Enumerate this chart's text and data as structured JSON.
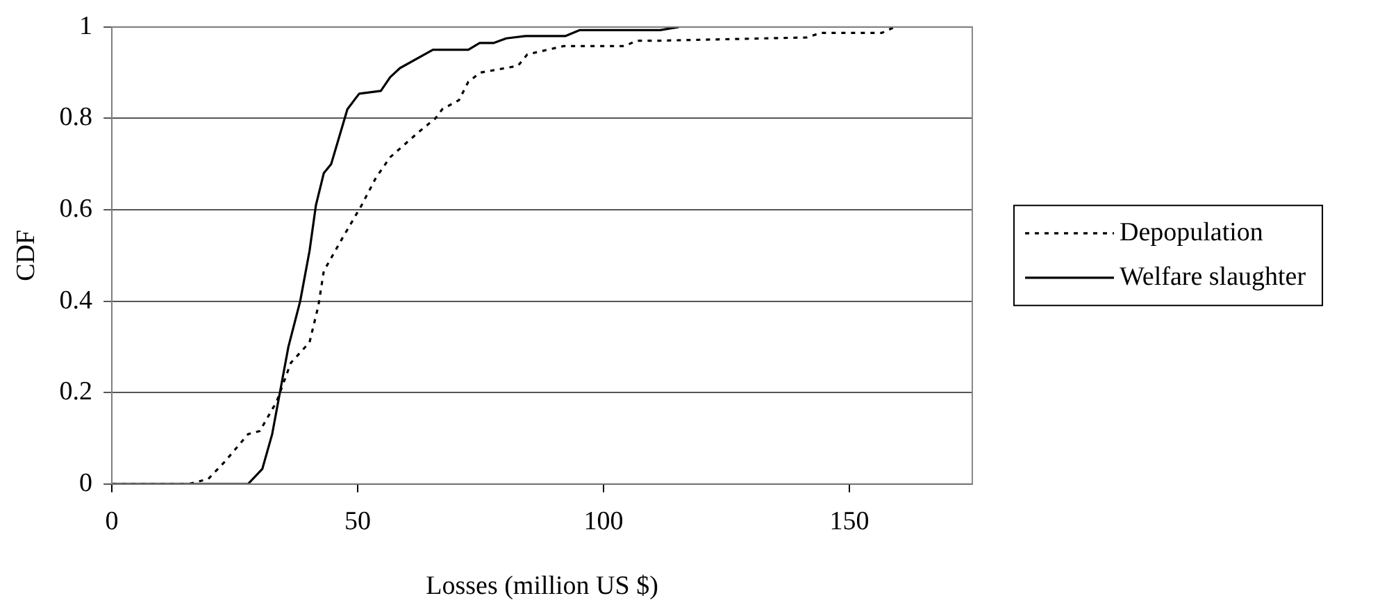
{
  "chart_data": {
    "type": "line",
    "xlabel": "Losses (million US $)",
    "ylabel": "CDF",
    "xlim": [
      0,
      175
    ],
    "xticks": [
      0,
      50,
      100,
      150
    ],
    "ylim": [
      0,
      1
    ],
    "yticks": [
      0,
      0.2,
      0.4,
      0.6,
      0.8,
      1
    ],
    "grid": "y",
    "legend": "right",
    "marker": "none",
    "series": [
      {
        "name": "Depopulation",
        "color": "#000000",
        "line_style": "dotted",
        "x": [
          0,
          15.7,
          19.6,
          22.9,
          27.7,
          30.1,
          33.5,
          36.4,
          40.2,
          42.0,
          43.1,
          47.0,
          50.8,
          53.7,
          56.6,
          62.4,
          65.8,
          67.2,
          70.6,
          72.5,
          74.9,
          82.6,
          84.5,
          91.8,
          104.3,
          106.7,
          111.5,
          141.3,
          144.2,
          156.6,
          159.2
        ],
        "values": [
          0,
          0,
          0.011,
          0.048,
          0.109,
          0.116,
          0.18,
          0.265,
          0.31,
          0.39,
          0.466,
          0.54,
          0.61,
          0.67,
          0.715,
          0.77,
          0.8,
          0.82,
          0.84,
          0.88,
          0.9,
          0.915,
          0.94,
          0.958,
          0.958,
          0.97,
          0.97,
          0.977,
          0.987,
          0.987,
          1
        ]
      },
      {
        "name": "Welfare slaughter",
        "color": "#000000",
        "line_style": "solid",
        "x": [
          0,
          27.7,
          30.6,
          32.6,
          34.0,
          35.9,
          38.3,
          40.2,
          41.5,
          43.1,
          44.6,
          47.9,
          50.3,
          54.7,
          56.6,
          58.6,
          65.3,
          72.5,
          74.8,
          77.7,
          80.2,
          84.1,
          92.2,
          95.1,
          111.5,
          115.3
        ],
        "values": [
          0,
          0,
          0.033,
          0.109,
          0.19,
          0.3,
          0.4,
          0.51,
          0.61,
          0.68,
          0.7,
          0.82,
          0.854,
          0.86,
          0.89,
          0.91,
          0.95,
          0.95,
          0.965,
          0.965,
          0.975,
          0.98,
          0.98,
          0.993,
          0.993,
          1
        ]
      }
    ]
  }
}
